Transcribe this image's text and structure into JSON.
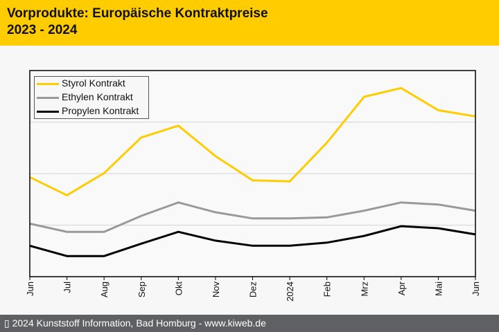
{
  "header": {
    "title_line1": "Vorprodukte: Europäische Kontraktpreise",
    "title_line2": "2023 - 2024"
  },
  "footer": {
    "text": "▯ 2024 Kunststoff Information, Bad Homburg - www.kiweb.de"
  },
  "chart_data": {
    "type": "line",
    "title": "Vorprodukte: Europäische Kontraktpreise 2023 - 2024",
    "xlabel": "",
    "ylabel": "",
    "y_unit_note": "no y-axis labels shown; values in relative gridline units (0 = bottom axis, 4 = top)",
    "ylim": [
      0,
      4
    ],
    "grid": true,
    "yticks": [
      1,
      2,
      3
    ],
    "legend_position": "top-left",
    "categories": [
      "Jun",
      "Jul",
      "Aug",
      "Sep",
      "Okt",
      "Nov",
      "Dez",
      "2024",
      "Feb",
      "Mrz",
      "Apr",
      "Mai",
      "Jun"
    ],
    "series": [
      {
        "name": "Styrol Kontrakt",
        "color": "#ffcc00",
        "values": [
          1.93,
          1.58,
          2.01,
          2.7,
          2.93,
          2.34,
          1.87,
          1.85,
          2.6,
          3.49,
          3.66,
          3.23,
          3.11
        ]
      },
      {
        "name": "Ethylen Kontrakt",
        "color": "#999999",
        "values": [
          1.03,
          0.87,
          0.87,
          1.18,
          1.44,
          1.25,
          1.13,
          1.13,
          1.15,
          1.28,
          1.44,
          1.4,
          1.28
        ]
      },
      {
        "name": "Propylen Kontrakt",
        "color": "#000000",
        "values": [
          0.6,
          0.4,
          0.4,
          0.64,
          0.87,
          0.7,
          0.6,
          0.6,
          0.66,
          0.79,
          0.98,
          0.94,
          0.82
        ]
      }
    ]
  }
}
